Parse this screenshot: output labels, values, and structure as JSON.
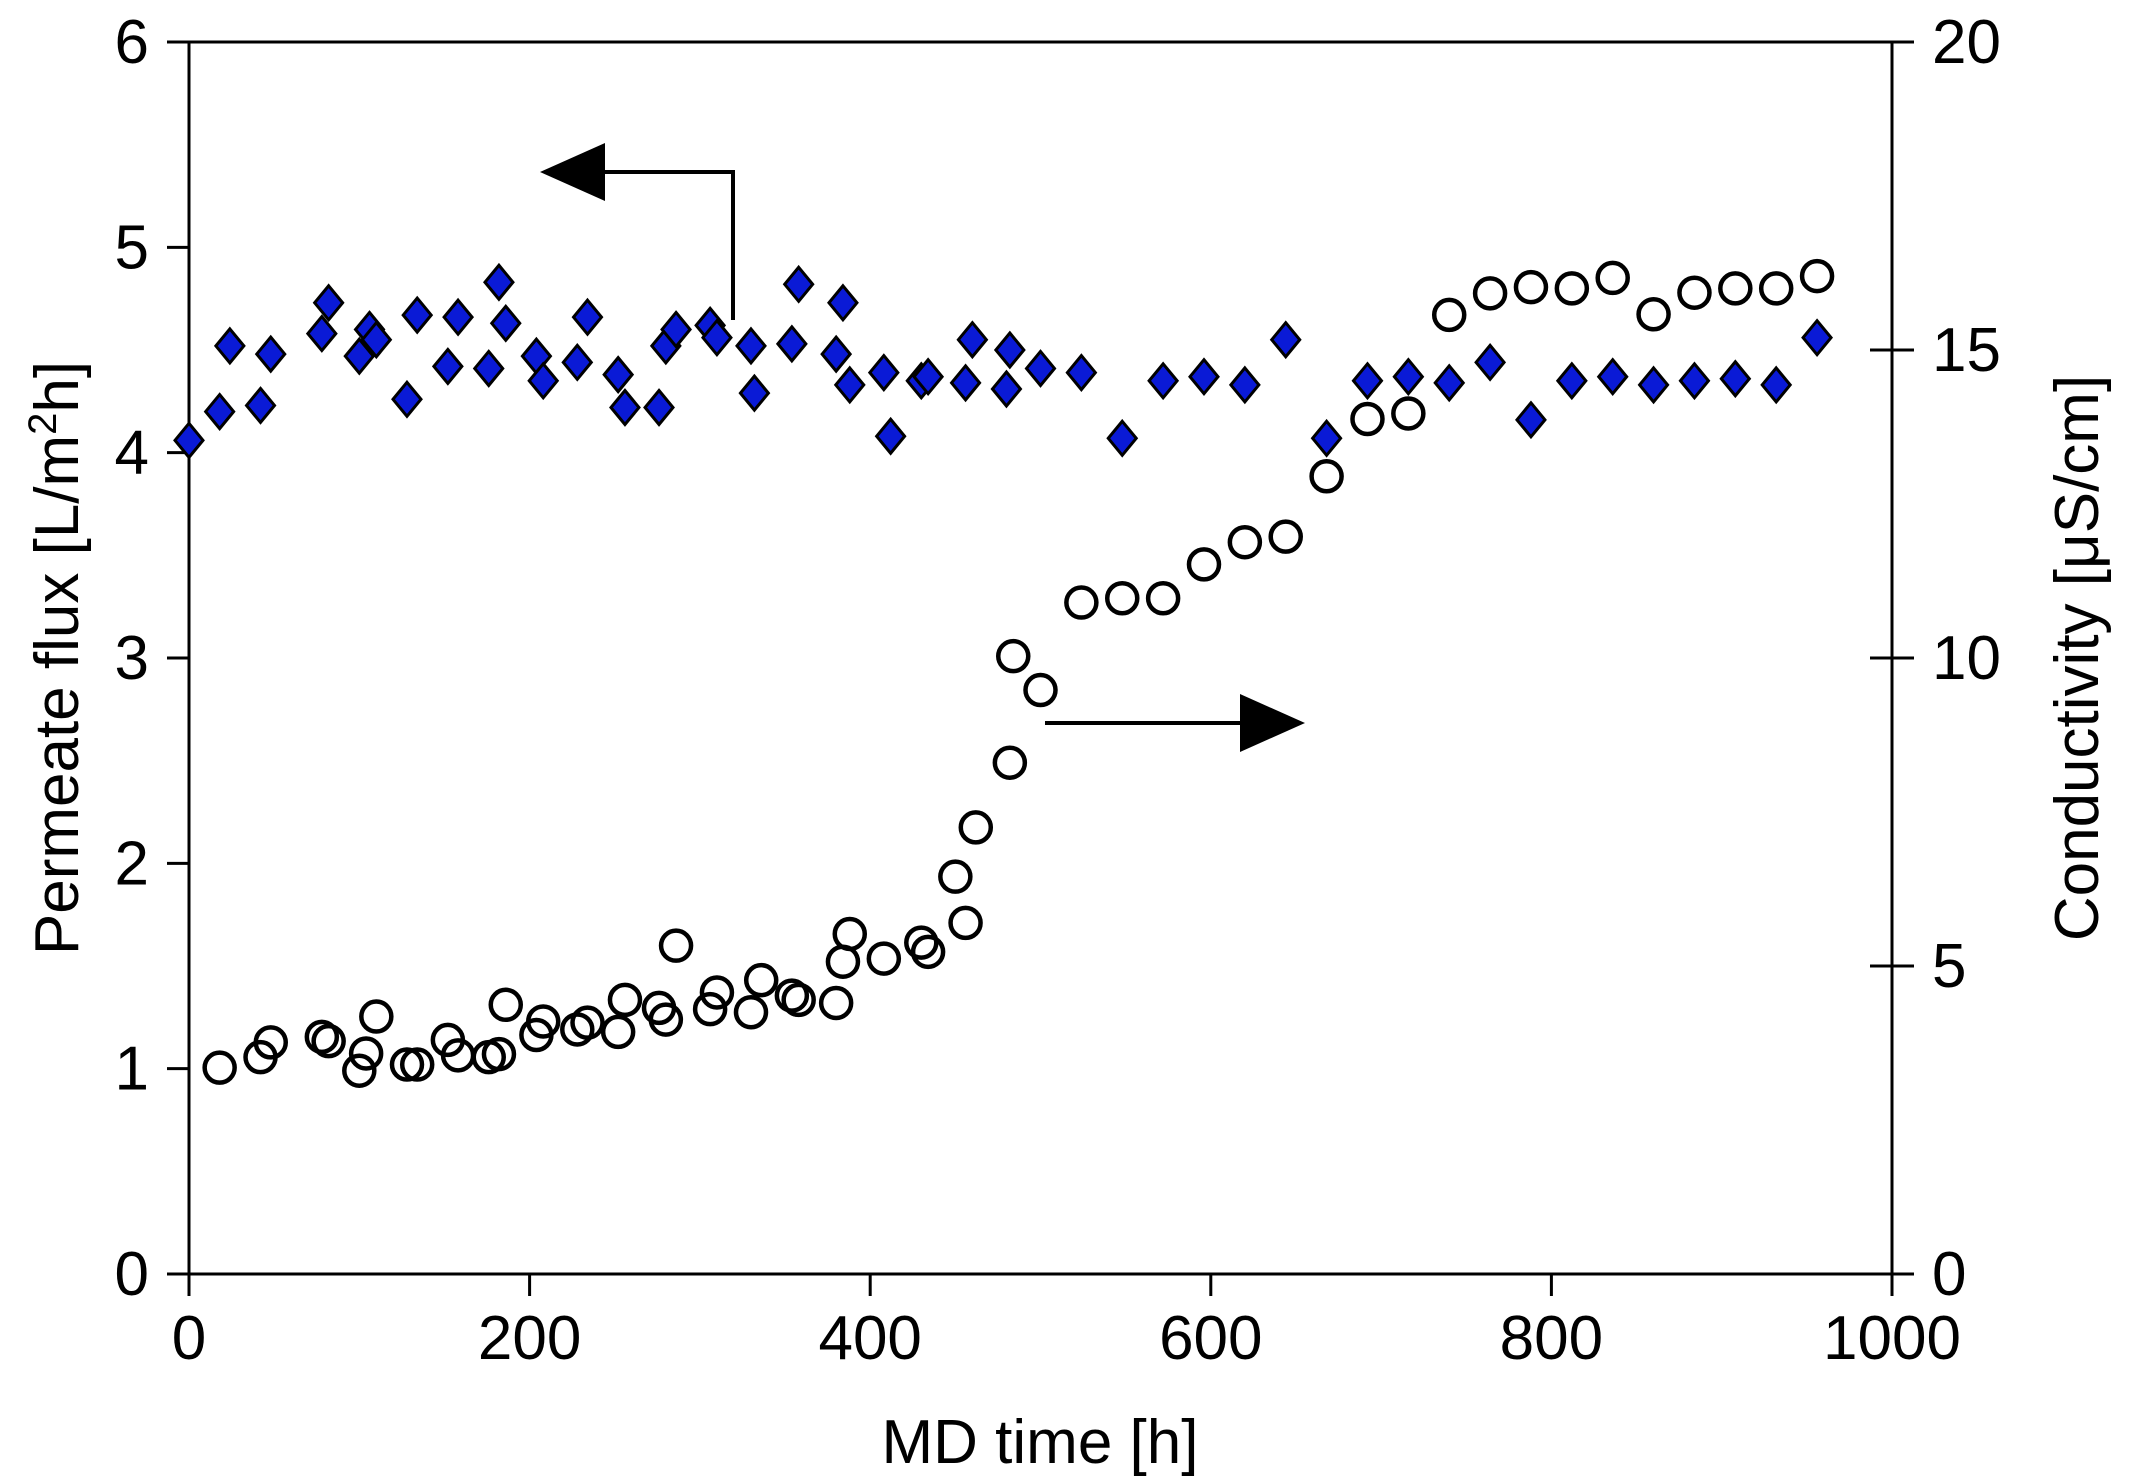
{
  "chart_data": {
    "type": "scatter",
    "title": "",
    "xlabel": "MD time [h]",
    "ylabel": {
      "prefix": "Permeate flux [L/m",
      "sup": "2",
      "suffix": "h]"
    },
    "y2label": "Conductivity [μS/cm]",
    "xlim": [
      0,
      1000
    ],
    "ylim": [
      0,
      6
    ],
    "y2lim": [
      0,
      20
    ],
    "x_ticks": [
      "0",
      "200",
      "400",
      "600",
      "800",
      "1000"
    ],
    "y_ticks": [
      "0",
      "1",
      "2",
      "3",
      "4",
      "5",
      "6"
    ],
    "y2_ticks": [
      "0",
      "5",
      "10",
      "15",
      "20"
    ],
    "grid": false,
    "series": [
      {
        "name": "Permeate flux",
        "axis": "left",
        "marker": "diamond",
        "color": "#0a1ad6",
        "points": [
          [
            0,
            4.06
          ],
          [
            18,
            4.2
          ],
          [
            24,
            4.52
          ],
          [
            42,
            4.23
          ],
          [
            48,
            4.48
          ],
          [
            78,
            4.58
          ],
          [
            82,
            4.73
          ],
          [
            100,
            4.47
          ],
          [
            106,
            4.6
          ],
          [
            110,
            4.55
          ],
          [
            128,
            4.26
          ],
          [
            134,
            4.67
          ],
          [
            152,
            4.42
          ],
          [
            158,
            4.66
          ],
          [
            176,
            4.41
          ],
          [
            182,
            4.83
          ],
          [
            186,
            4.63
          ],
          [
            204,
            4.47
          ],
          [
            208,
            4.35
          ],
          [
            228,
            4.44
          ],
          [
            234,
            4.66
          ],
          [
            252,
            4.38
          ],
          [
            256,
            4.22
          ],
          [
            276,
            4.22
          ],
          [
            280,
            4.52
          ],
          [
            286,
            4.6
          ],
          [
            306,
            4.62
          ],
          [
            310,
            4.56
          ],
          [
            330,
            4.52
          ],
          [
            332,
            4.29
          ],
          [
            354,
            4.53
          ],
          [
            358,
            4.82
          ],
          [
            380,
            4.48
          ],
          [
            384,
            4.73
          ],
          [
            388,
            4.33
          ],
          [
            408,
            4.39
          ],
          [
            412,
            4.08
          ],
          [
            430,
            4.35
          ],
          [
            434,
            4.37
          ],
          [
            456,
            4.34
          ],
          [
            460,
            4.55
          ],
          [
            480,
            4.31
          ],
          [
            482,
            4.5
          ],
          [
            500,
            4.41
          ],
          [
            524,
            4.39
          ],
          [
            548,
            4.07
          ],
          [
            572,
            4.35
          ],
          [
            596,
            4.37
          ],
          [
            620,
            4.33
          ],
          [
            644,
            4.55
          ],
          [
            668,
            4.07
          ],
          [
            692,
            4.35
          ],
          [
            716,
            4.37
          ],
          [
            740,
            4.34
          ],
          [
            764,
            4.44
          ],
          [
            788,
            4.16
          ],
          [
            812,
            4.35
          ],
          [
            836,
            4.37
          ],
          [
            860,
            4.33
          ],
          [
            884,
            4.35
          ],
          [
            908,
            4.36
          ],
          [
            932,
            4.33
          ],
          [
            956,
            4.56
          ]
        ]
      },
      {
        "name": "Conductivity",
        "axis": "right",
        "marker": "open-circle",
        "color": "#000000",
        "points": [
          [
            18,
            3.35
          ],
          [
            42,
            3.52
          ],
          [
            48,
            3.76
          ],
          [
            78,
            3.85
          ],
          [
            82,
            3.78
          ],
          [
            100,
            3.3
          ],
          [
            104,
            3.58
          ],
          [
            110,
            4.18
          ],
          [
            128,
            3.4
          ],
          [
            134,
            3.4
          ],
          [
            152,
            3.8
          ],
          [
            158,
            3.55
          ],
          [
            176,
            3.52
          ],
          [
            182,
            3.57
          ],
          [
            186,
            4.37
          ],
          [
            204,
            3.88
          ],
          [
            208,
            4.1
          ],
          [
            228,
            3.97
          ],
          [
            234,
            4.08
          ],
          [
            252,
            3.93
          ],
          [
            256,
            4.45
          ],
          [
            276,
            4.32
          ],
          [
            280,
            4.13
          ],
          [
            286,
            5.33
          ],
          [
            306,
            4.3
          ],
          [
            310,
            4.57
          ],
          [
            330,
            4.25
          ],
          [
            336,
            4.77
          ],
          [
            354,
            4.52
          ],
          [
            358,
            4.45
          ],
          [
            380,
            4.4
          ],
          [
            384,
            5.07
          ],
          [
            388,
            5.52
          ],
          [
            408,
            5.12
          ],
          [
            430,
            5.38
          ],
          [
            434,
            5.23
          ],
          [
            450,
            6.45
          ],
          [
            456,
            5.7
          ],
          [
            462,
            7.25
          ],
          [
            482,
            8.3
          ],
          [
            484,
            10.03
          ],
          [
            500,
            9.48
          ],
          [
            524,
            10.9
          ],
          [
            548,
            10.97
          ],
          [
            572,
            10.97
          ],
          [
            596,
            11.52
          ],
          [
            620,
            11.88
          ],
          [
            644,
            11.97
          ],
          [
            668,
            12.95
          ],
          [
            692,
            13.88
          ],
          [
            716,
            13.97
          ],
          [
            740,
            15.57
          ],
          [
            764,
            15.92
          ],
          [
            788,
            16.02
          ],
          [
            812,
            16.0
          ],
          [
            836,
            16.17
          ],
          [
            860,
            15.58
          ],
          [
            884,
            15.93
          ],
          [
            908,
            16.0
          ],
          [
            932,
            16.0
          ],
          [
            956,
            16.2
          ]
        ]
      }
    ],
    "annotations": [
      {
        "type": "arrow",
        "direction": "left",
        "meaning": "flux series uses left axis"
      },
      {
        "type": "arrow",
        "direction": "right",
        "meaning": "conductivity series uses right axis"
      }
    ]
  }
}
